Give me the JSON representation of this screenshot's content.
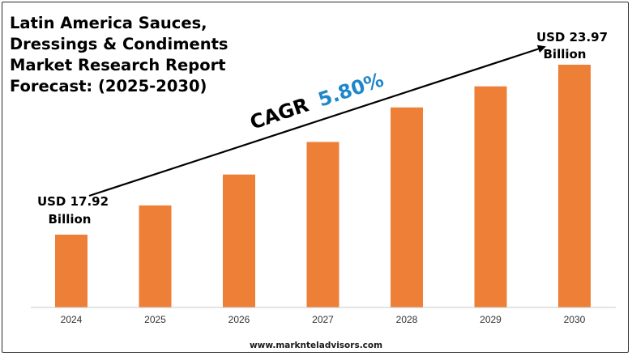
{
  "title_lines": [
    "Latin America Sauces,",
    "Dressings & Condiments",
    "Market Research Report",
    "Forecast: (2025-2030)"
  ],
  "footer": {
    "website": "www.marknteladvisors.com"
  },
  "colors": {
    "bar": "#ee7f36",
    "cagr_value": "#1f86c9",
    "text": "#000000"
  },
  "annotations": {
    "start_line1": "USD 17.92",
    "start_line2": "Billion",
    "end_line1": "USD 23.97",
    "end_line2": "Billion",
    "cagr_label": "CAGR",
    "cagr_value": "5.80%"
  },
  "chart_data": {
    "type": "bar",
    "title": "Latin America Sauces, Dressings & Condiments Market Research Report Forecast: (2025-2030)",
    "categories": [
      "2024",
      "2025",
      "2026",
      "2027",
      "2028",
      "2029",
      "2030"
    ],
    "values": [
      17.92,
      18.96,
      20.06,
      21.22,
      22.45,
      23.2,
      23.97
    ],
    "first_value_label": "USD 17.92 Billion",
    "last_value_label": "USD 23.97 Billion",
    "cagr": "5.80%",
    "xlabel": "",
    "ylabel": "",
    "y_axis_visible": false,
    "grid": false,
    "legend": "none"
  }
}
